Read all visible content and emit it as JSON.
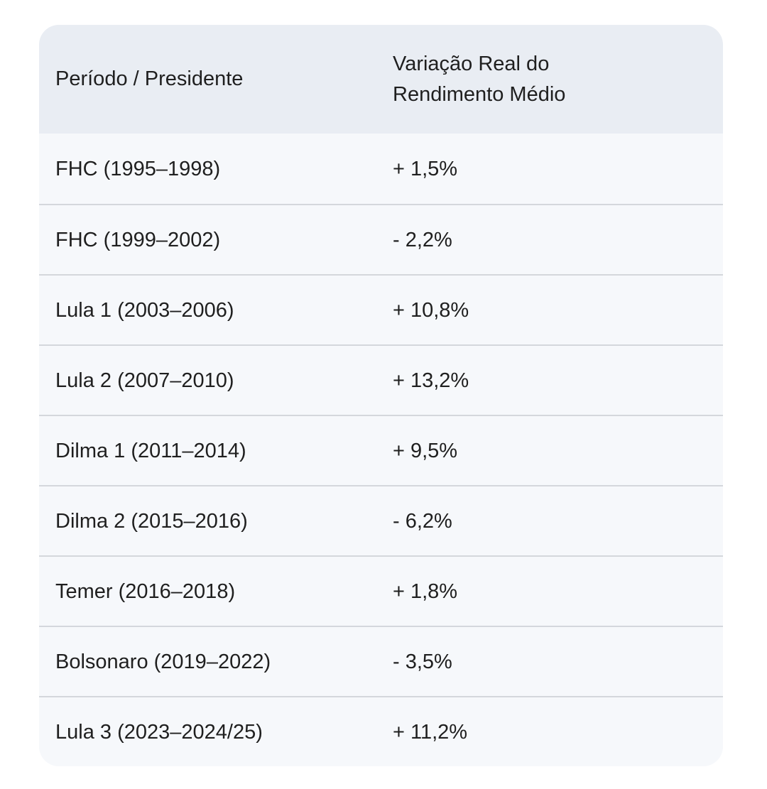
{
  "table": {
    "header": {
      "col1": "Período / Presidente",
      "col2": "Variação Real do Rendimento Médio"
    },
    "rows": [
      {
        "period": "FHC (1995–1998)",
        "variation": "+ 1,5%"
      },
      {
        "period": "FHC (1999–2002)",
        "variation": "- 2,2%"
      },
      {
        "period": "Lula 1 (2003–2006)",
        "variation": "+ 10,8%"
      },
      {
        "period": "Lula 2 (2007–2010)",
        "variation": "+ 13,2%"
      },
      {
        "period": "Dilma 1 (2011–2014)",
        "variation": "+ 9,5%"
      },
      {
        "period": "Dilma 2 (2015–2016)",
        "variation": "- 6,2%"
      },
      {
        "period": "Temer (2016–2018)",
        "variation": "+ 1,8%"
      },
      {
        "period": "Bolsonaro (2019–2022)",
        "variation": "- 3,5%"
      },
      {
        "period": "Lula 3 (2023–2024/25)",
        "variation": "+ 11,2%"
      }
    ]
  },
  "colors": {
    "page_bg": "#ffffff",
    "header_bg": "#e9edf3",
    "row_bg": "#f6f8fb",
    "divider": "#d4d7dc",
    "text": "#1f1f1f"
  },
  "chart_data": {
    "type": "table",
    "title": "",
    "columns": [
      "Período / Presidente",
      "Variação Real do Rendimento Médio"
    ],
    "categories": [
      "FHC (1995–1998)",
      "FHC (1999–2002)",
      "Lula 1 (2003–2006)",
      "Lula 2 (2007–2010)",
      "Dilma 1 (2011–2014)",
      "Dilma 2 (2015–2016)",
      "Temer (2016–2018)",
      "Bolsonaro (2019–2022)",
      "Lula 3 (2023–2024/25)"
    ],
    "values": [
      1.5,
      -2.2,
      10.8,
      13.2,
      9.5,
      -6.2,
      1.8,
      -3.5,
      11.2
    ],
    "value_unit": "%",
    "value_labels": [
      "+ 1,5%",
      "- 2,2%",
      "+ 10,8%",
      "+ 13,2%",
      "+ 9,5%",
      "- 6,2%",
      "+ 1,8%",
      "- 3,5%",
      "+ 11,2%"
    ]
  }
}
